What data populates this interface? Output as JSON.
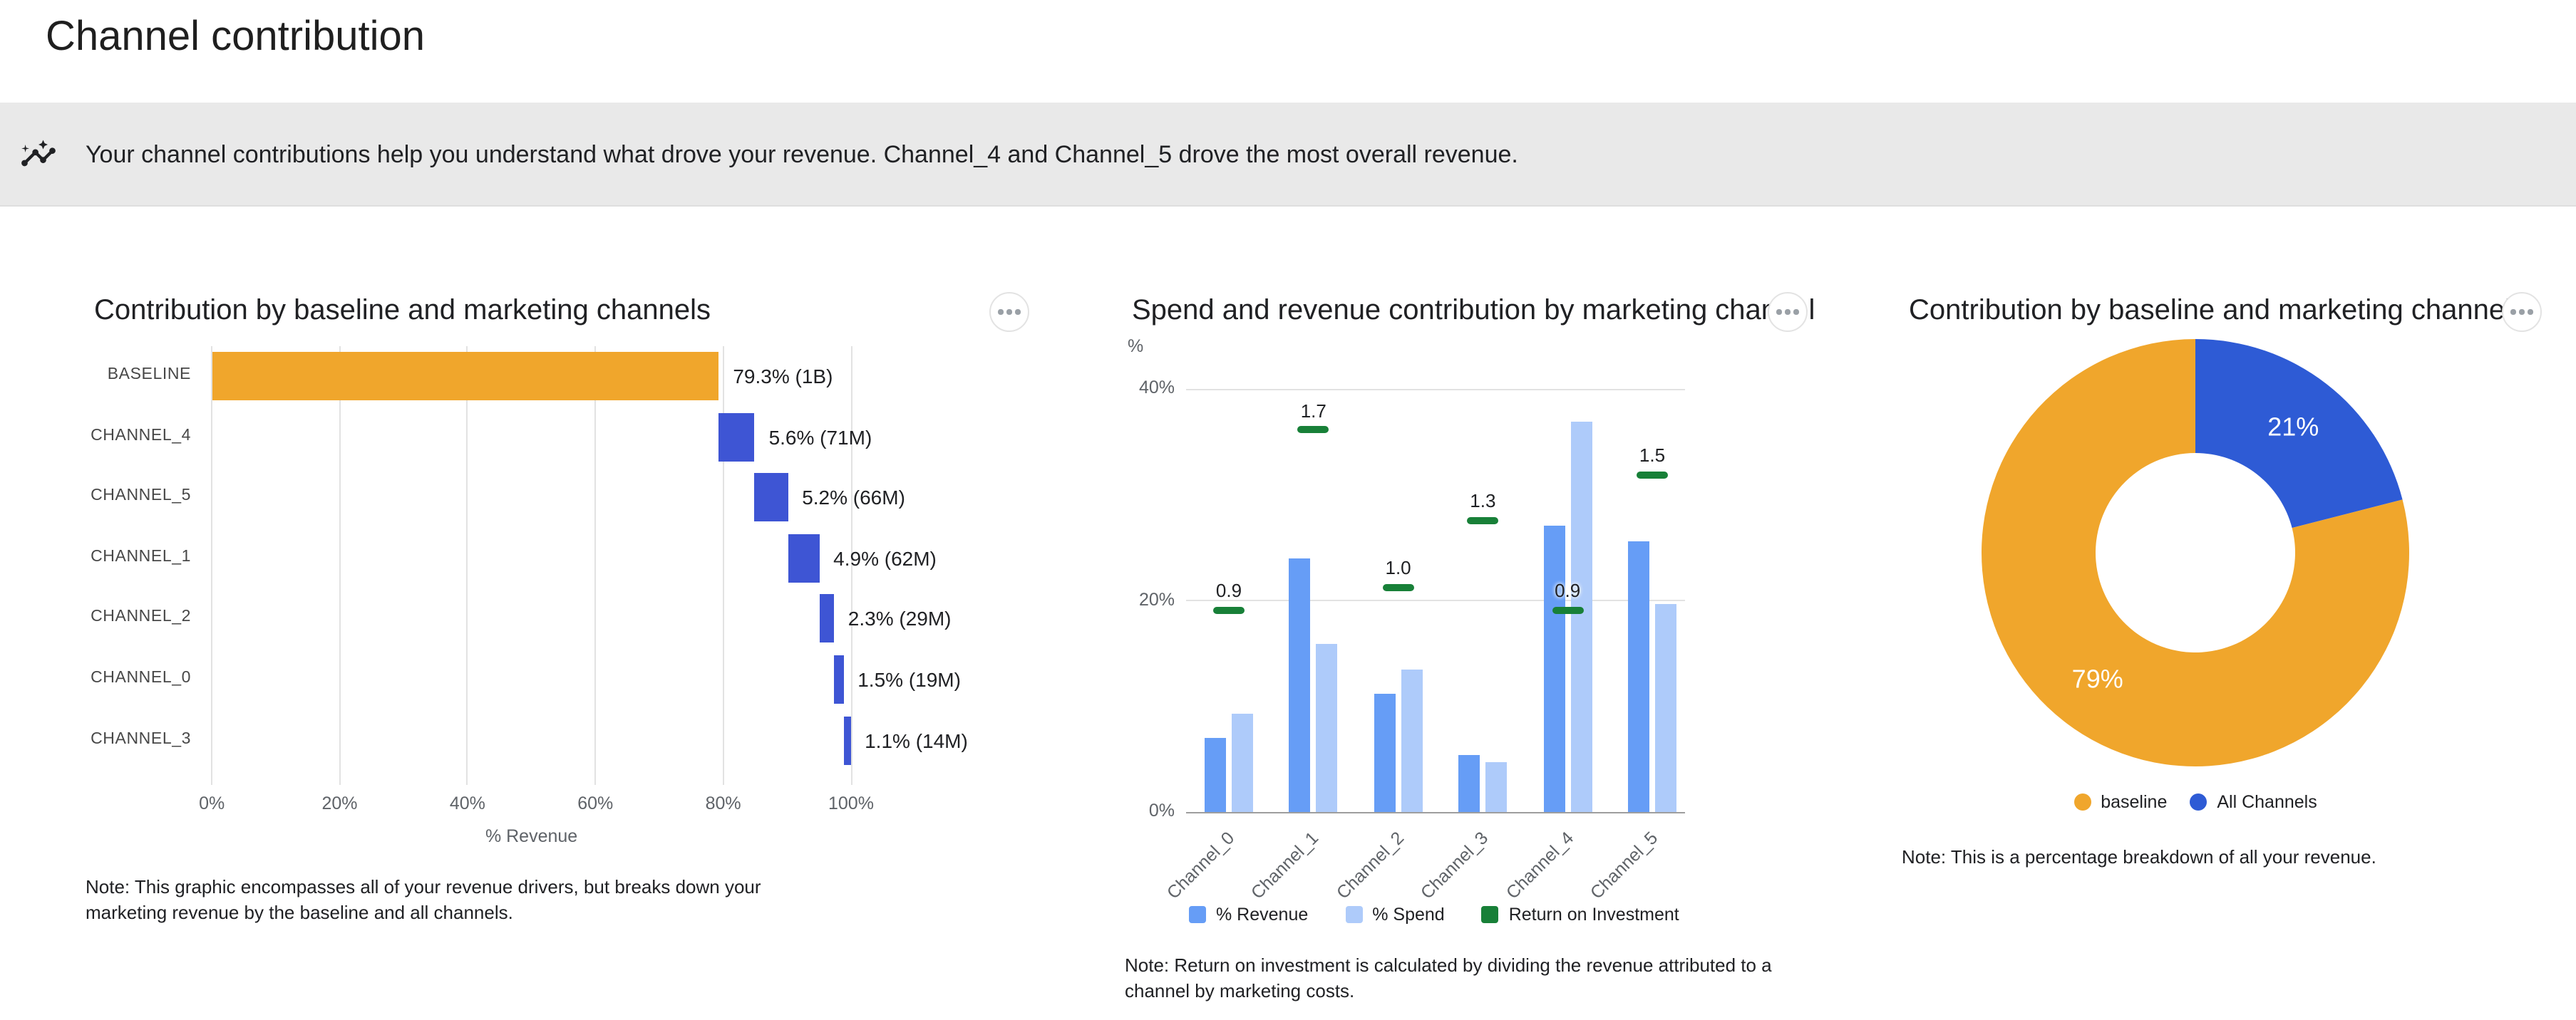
{
  "page": {
    "title": "Channel contribution"
  },
  "banner": {
    "icon": "insights-icon",
    "text": "Your channel contributions help you understand what drove your revenue. Channel_4 and Channel_5 drove the most overall revenue."
  },
  "colors": {
    "baseline_orange": "#F0A62C",
    "waterfall_blue": "#3E55D4",
    "revenue_blue": "#669DF6",
    "spend_blue": "#AECBFA",
    "roi_green": "#188038",
    "donut_blue": "#2E5BD5",
    "gridline": "#E2E2E2",
    "axis_line": "#9E9E9E",
    "banner_bg": "#E9E9E9",
    "text_primary": "#202124",
    "text_secondary": "#5F6368"
  },
  "chart_data": [
    {
      "type": "bar",
      "variant": "horizontal_waterfall",
      "title": "Contribution by baseline and marketing channels",
      "categories": [
        "BASELINE",
        "CHANNEL_4",
        "CHANNEL_5",
        "CHANNEL_1",
        "CHANNEL_2",
        "CHANNEL_0",
        "CHANNEL_3"
      ],
      "values_pct": [
        79.3,
        5.6,
        5.2,
        4.9,
        2.3,
        1.5,
        1.1
      ],
      "labels": [
        "79.3% (1B)",
        "5.6% (71M)",
        "5.2% (66M)",
        "4.9% (62M)",
        "2.3% (29M)",
        "1.5% (19M)",
        "1.1% (14M)"
      ],
      "xlabel": "% Revenue",
      "xlim": [
        0,
        100
      ],
      "x_ticks": [
        0,
        20,
        40,
        60,
        80,
        100
      ],
      "legend_position": "none",
      "grid": "vertical",
      "note_lines": [
        "Note: This graphic encompasses all of your revenue drivers, but breaks down your",
        "marketing revenue by the baseline and all channels."
      ]
    },
    {
      "type": "bar",
      "variant": "grouped_with_roi_markers",
      "title": "Spend and revenue contribution by marketing channel",
      "categories": [
        "Channel_0",
        "Channel_1",
        "Channel_2",
        "Channel_3",
        "Channel_4",
        "Channel_5"
      ],
      "series": [
        {
          "name": "% Revenue",
          "values": [
            7,
            24,
            11.2,
            5.4,
            27.1,
            25.6
          ],
          "color": "#669DF6"
        },
        {
          "name": "% Spend",
          "values": [
            9.3,
            16,
            13.5,
            4.8,
            36.9,
            19.7
          ],
          "color": "#AECBFA"
        },
        {
          "name": "Return on Investment",
          "values": [
            0.9,
            1.7,
            1.0,
            1.3,
            0.9,
            1.5
          ],
          "color": "#188038"
        }
      ],
      "roi_labels": [
        "0.9",
        "1.7",
        "1.0",
        "1.3",
        "0.9",
        "1.5"
      ],
      "ylabel": "%",
      "ylim": [
        0,
        40
      ],
      "y_ticks": [
        0,
        20,
        40
      ],
      "legend_position": "bottom",
      "grid": "horizontal",
      "note_lines": [
        "Note: Return on investment is calculated by dividing the revenue attributed to a",
        "channel by marketing costs."
      ]
    },
    {
      "type": "pie",
      "variant": "donut",
      "title": "Contribution by baseline and marketing channels",
      "slices": [
        {
          "label": "baseline",
          "value": 79,
          "display": "79%",
          "color": "#F0A62C"
        },
        {
          "label": "All Channels",
          "value": 21,
          "display": "21%",
          "color": "#2E5BD5"
        }
      ],
      "legend_position": "bottom",
      "note": "Note: This is a percentage breakdown of all your revenue."
    }
  ]
}
